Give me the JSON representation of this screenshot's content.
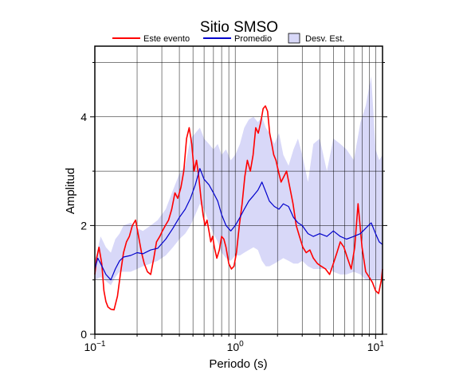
{
  "chart_data": {
    "type": "line",
    "title": "Sitio SMSO",
    "xlabel": "Periodo (s)",
    "ylabel": "Amplitud",
    "x_scale": "log",
    "xlim": [
      0.1,
      11.2
    ],
    "ylim": [
      0,
      5.3
    ],
    "x_ticks": [
      {
        "value": 0.1,
        "base": "10",
        "exp": "−1"
      },
      {
        "value": 1,
        "label": "10",
        "suffix": "0"
      },
      {
        "value": 10,
        "label": "10",
        "suffix": "1"
      }
    ],
    "y_ticks": [
      0,
      2,
      4
    ],
    "grid": true,
    "legend": [
      {
        "label": "Este evento",
        "color": "#ff0000",
        "kind": "line"
      },
      {
        "label": "Promedio",
        "color": "#0000cc",
        "kind": "line"
      },
      {
        "label": "Desv. Est.",
        "color": "#d8d8f8",
        "kind": "box"
      }
    ],
    "series": [
      {
        "name": "Este evento",
        "color": "#ff0000",
        "x": [
          0.1,
          0.103,
          0.107,
          0.112,
          0.116,
          0.12,
          0.124,
          0.13,
          0.137,
          0.145,
          0.152,
          0.16,
          0.168,
          0.176,
          0.185,
          0.195,
          0.205,
          0.215,
          0.225,
          0.237,
          0.25,
          0.263,
          0.275,
          0.29,
          0.303,
          0.318,
          0.335,
          0.353,
          0.372,
          0.39,
          0.41,
          0.43,
          0.45,
          0.47,
          0.49,
          0.51,
          0.53,
          0.55,
          0.57,
          0.59,
          0.61,
          0.63,
          0.65,
          0.67,
          0.69,
          0.71,
          0.74,
          0.77,
          0.8,
          0.83,
          0.86,
          0.9,
          0.94,
          0.98,
          1.02,
          1.07,
          1.12,
          1.17,
          1.22,
          1.28,
          1.34,
          1.4,
          1.46,
          1.52,
          1.58,
          1.64,
          1.7,
          1.76,
          1.82,
          1.88,
          1.95,
          2.03,
          2.12,
          2.22,
          2.32,
          2.45,
          2.58,
          2.72,
          2.87,
          3.03,
          3.2,
          3.4,
          3.6,
          3.85,
          4.1,
          4.4,
          4.7,
          5.0,
          5.3,
          5.6,
          5.95,
          6.3,
          6.7,
          7.1,
          7.5,
          8.0,
          8.5,
          9.0,
          9.5,
          10.0,
          10.5,
          11.0,
          11.2
        ],
        "y": [
          1.1,
          1.4,
          1.6,
          1.3,
          0.8,
          0.6,
          0.5,
          0.46,
          0.45,
          0.7,
          1.1,
          1.5,
          1.7,
          1.8,
          2.0,
          2.1,
          1.8,
          1.5,
          1.3,
          1.15,
          1.1,
          1.4,
          1.7,
          1.8,
          1.9,
          2.0,
          2.1,
          2.3,
          2.6,
          2.5,
          2.7,
          3.0,
          3.6,
          3.8,
          3.5,
          3.0,
          3.2,
          2.9,
          2.5,
          2.2,
          2.0,
          2.1,
          1.9,
          1.7,
          1.8,
          1.6,
          1.4,
          1.55,
          1.8,
          1.75,
          1.6,
          1.3,
          1.2,
          1.25,
          1.5,
          2.0,
          2.4,
          2.9,
          3.2,
          3.0,
          3.3,
          3.8,
          3.7,
          3.9,
          4.15,
          4.2,
          4.1,
          3.7,
          3.5,
          3.3,
          3.2,
          3.0,
          2.8,
          2.9,
          3.0,
          2.7,
          2.4,
          2.0,
          1.8,
          1.6,
          1.5,
          1.55,
          1.4,
          1.3,
          1.25,
          1.2,
          1.1,
          1.3,
          1.5,
          1.7,
          1.6,
          1.4,
          1.2,
          1.6,
          2.4,
          1.6,
          1.15,
          1.05,
          0.95,
          0.8,
          0.75,
          1.0,
          1.2
        ]
      },
      {
        "name": "Promedio",
        "color": "#0000cc",
        "x": [
          0.1,
          0.105,
          0.11,
          0.12,
          0.13,
          0.14,
          0.15,
          0.16,
          0.18,
          0.2,
          0.22,
          0.25,
          0.28,
          0.32,
          0.36,
          0.4,
          0.44,
          0.48,
          0.52,
          0.56,
          0.6,
          0.65,
          0.7,
          0.75,
          0.8,
          0.86,
          0.93,
          1.0,
          1.08,
          1.16,
          1.25,
          1.35,
          1.45,
          1.55,
          1.65,
          1.75,
          1.9,
          2.05,
          2.2,
          2.4,
          2.6,
          2.8,
          3.0,
          3.3,
          3.6,
          4.0,
          4.5,
          5.0,
          5.6,
          6.2,
          7.0,
          7.8,
          8.5,
          9.3,
          10.0,
          10.6,
          11.2
        ],
        "y": [
          1.2,
          1.4,
          1.3,
          1.1,
          1.0,
          1.2,
          1.35,
          1.42,
          1.45,
          1.5,
          1.48,
          1.55,
          1.58,
          1.75,
          1.95,
          2.15,
          2.3,
          2.5,
          2.75,
          3.05,
          2.85,
          2.75,
          2.6,
          2.45,
          2.2,
          2.0,
          1.9,
          2.0,
          2.15,
          2.3,
          2.45,
          2.55,
          2.65,
          2.8,
          2.62,
          2.45,
          2.35,
          2.3,
          2.4,
          2.35,
          2.15,
          2.05,
          2.0,
          1.85,
          1.8,
          1.85,
          1.8,
          1.9,
          1.8,
          1.75,
          1.8,
          1.85,
          1.95,
          2.05,
          1.85,
          1.7,
          1.65
        ]
      }
    ],
    "band": {
      "name": "Desv. Est.",
      "color": "#d8d8f8",
      "x": [
        0.1,
        0.11,
        0.12,
        0.13,
        0.14,
        0.15,
        0.16,
        0.18,
        0.2,
        0.22,
        0.25,
        0.28,
        0.32,
        0.36,
        0.4,
        0.44,
        0.48,
        0.52,
        0.56,
        0.6,
        0.65,
        0.7,
        0.75,
        0.8,
        0.86,
        0.93,
        1.0,
        1.08,
        1.16,
        1.25,
        1.35,
        1.45,
        1.55,
        1.65,
        1.75,
        1.9,
        2.05,
        2.2,
        2.4,
        2.6,
        2.8,
        3.0,
        3.3,
        3.6,
        4.0,
        4.5,
        5.0,
        5.6,
        6.2,
        7.0,
        7.8,
        8.5,
        9.3,
        10.0,
        10.6,
        11.2
      ],
      "upper": [
        1.35,
        1.8,
        1.6,
        1.5,
        1.75,
        1.85,
        2.0,
        2.05,
        1.95,
        1.9,
        2.0,
        2.1,
        2.3,
        2.65,
        2.95,
        3.1,
        3.6,
        3.7,
        3.8,
        3.6,
        3.5,
        3.4,
        3.5,
        3.3,
        3.4,
        3.2,
        3.3,
        3.5,
        3.8,
        3.95,
        4.0,
        3.9,
        4.0,
        3.8,
        3.7,
        3.5,
        3.7,
        3.3,
        3.1,
        3.4,
        3.6,
        3.3,
        2.8,
        3.5,
        3.6,
        3.0,
        3.6,
        3.5,
        3.4,
        3.2,
        3.9,
        4.2,
        4.75,
        3.4,
        3.2,
        3.3
      ],
      "lower": [
        1.0,
        1.05,
        0.98,
        0.9,
        1.05,
        1.15,
        1.15,
        1.15,
        1.2,
        1.25,
        1.3,
        1.35,
        1.45,
        1.6,
        1.75,
        1.85,
        2.0,
        2.2,
        2.4,
        2.3,
        2.05,
        1.85,
        1.7,
        1.5,
        1.4,
        1.35,
        1.45,
        1.45,
        1.5,
        1.55,
        1.6,
        1.55,
        1.35,
        1.25,
        1.25,
        1.3,
        1.35,
        1.4,
        1.35,
        1.3,
        1.3,
        1.35,
        1.25,
        1.2,
        1.2,
        1.2,
        1.15,
        1.1,
        1.1,
        1.15,
        1.1,
        1.0,
        1.0,
        1.0,
        1.0,
        1.0
      ]
    }
  }
}
